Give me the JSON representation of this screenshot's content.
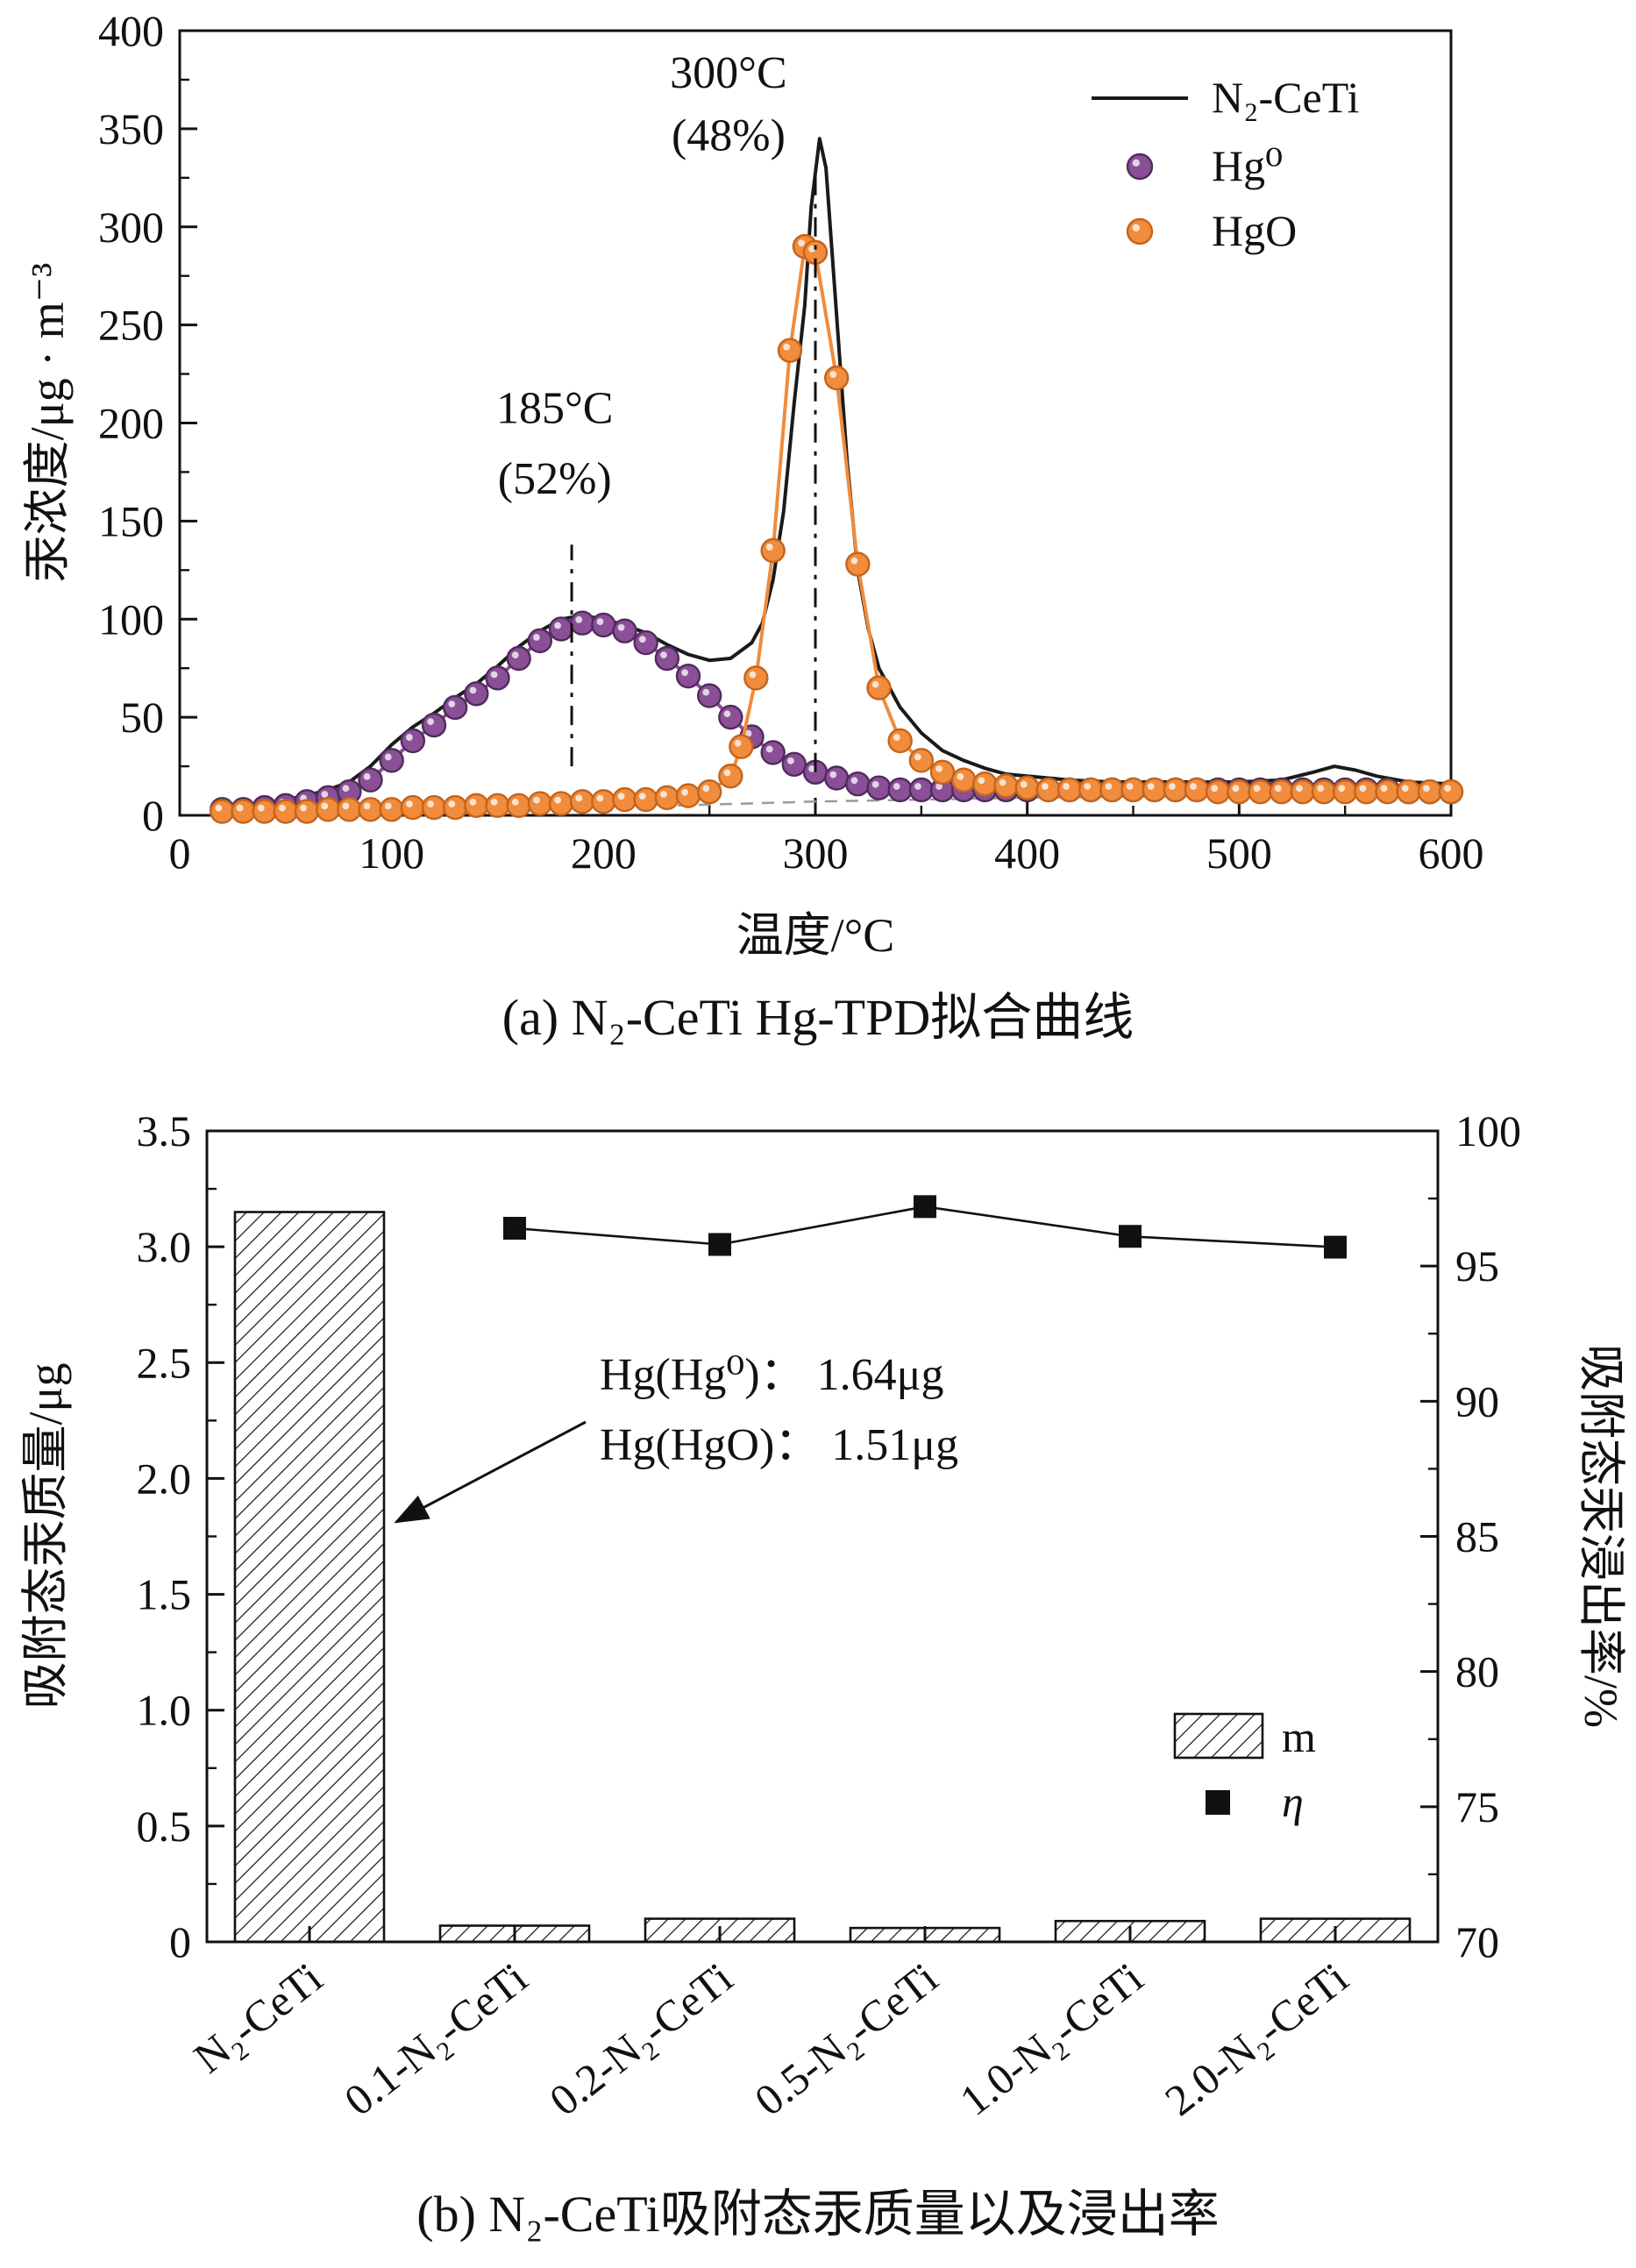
{
  "page": {
    "caption_a": "(a) N₂-CeTi Hg-TPD拟合曲线",
    "caption_b": "(b) N₂-CeTi吸附态汞质量以及浸出率"
  },
  "chart_data": [
    {
      "type": "line",
      "xlabel": "温度/°C",
      "ylabel": "汞浓度/μg · m⁻³",
      "xlim": [
        0,
        600
      ],
      "ylim": [
        0,
        400
      ],
      "xticks": [
        0,
        100,
        200,
        300,
        400,
        500,
        600
      ],
      "yticks": [
        0,
        50,
        100,
        150,
        200,
        250,
        300,
        350,
        400
      ],
      "x_minor": [
        50,
        150,
        250,
        350,
        450,
        550
      ],
      "y_minor": [
        25,
        75,
        125,
        175,
        225,
        275,
        325,
        375
      ],
      "legend": [
        {
          "label": "N₂-CeTi",
          "kind": "line",
          "color": "#1a1a1a"
        },
        {
          "label": "Hg⁰",
          "kind": "ball",
          "color": "#8a4f97",
          "edge": "#4f2c5c"
        },
        {
          "label": "HgO",
          "kind": "ball",
          "color": "#f08c3c",
          "edge": "#c4641d"
        }
      ],
      "series": [
        {
          "name": "baseline-fit",
          "type": "dashed-line",
          "color": "#9a9a9a",
          "x": [
            235,
            300,
            400,
            500,
            600
          ],
          "y": [
            5,
            7,
            9,
            10,
            11
          ]
        },
        {
          "name": "N₂-CeTi",
          "type": "line",
          "color": "#1a1a1a",
          "x": [
            20,
            30,
            40,
            50,
            60,
            70,
            80,
            90,
            100,
            110,
            120,
            130,
            140,
            150,
            160,
            170,
            180,
            190,
            200,
            210,
            220,
            230,
            240,
            250,
            260,
            270,
            275,
            280,
            285,
            290,
            295,
            298,
            302,
            305,
            310,
            315,
            320,
            325,
            330,
            340,
            350,
            360,
            370,
            380,
            390,
            400,
            420,
            440,
            460,
            480,
            500,
            520,
            535,
            545,
            555,
            565,
            580,
            600
          ],
          "y": [
            4,
            5,
            6,
            8,
            10,
            13,
            17,
            25,
            36,
            45,
            52,
            60,
            67,
            76,
            86,
            94,
            100,
            102,
            100,
            97,
            93,
            87,
            82,
            79,
            80,
            88,
            98,
            120,
            155,
            210,
            260,
            310,
            345,
            330,
            255,
            180,
            125,
            95,
            75,
            55,
            42,
            33,
            28,
            24,
            21,
            20,
            18,
            17,
            17,
            17,
            17,
            18,
            22,
            25,
            23,
            20,
            17,
            16
          ]
        },
        {
          "name": "Hg⁰",
          "type": "line-marker",
          "color": "#8a4f97",
          "edge": "#4f2c5c",
          "x": [
            20,
            30,
            40,
            50,
            60,
            70,
            80,
            90,
            100,
            110,
            120,
            130,
            140,
            150,
            160,
            170,
            180,
            190,
            200,
            210,
            220,
            230,
            240,
            250,
            260,
            270,
            280,
            290,
            300,
            310,
            320,
            330,
            340,
            350,
            360,
            370,
            380,
            390,
            400,
            410,
            420,
            430,
            440,
            450,
            460,
            470,
            480,
            490,
            500,
            510,
            520,
            530,
            540,
            550,
            560,
            570,
            580,
            590,
            600
          ],
          "y": [
            3,
            3,
            4,
            5,
            7,
            9,
            12,
            18,
            28,
            38,
            46,
            55,
            62,
            70,
            80,
            89,
            95,
            98,
            97,
            94,
            88,
            80,
            71,
            61,
            50,
            40,
            32,
            26,
            22,
            19,
            16,
            14,
            13,
            13,
            13,
            13,
            13,
            13,
            13,
            13,
            13,
            13,
            13,
            13,
            13,
            13,
            13,
            13,
            13,
            13,
            13,
            13,
            13,
            13,
            13,
            13,
            12,
            12,
            12
          ]
        },
        {
          "name": "HgO",
          "type": "line-marker",
          "color": "#f08c3c",
          "edge": "#c4641d",
          "x": [
            20,
            30,
            40,
            50,
            60,
            70,
            80,
            90,
            100,
            110,
            120,
            130,
            140,
            150,
            160,
            170,
            180,
            190,
            200,
            210,
            220,
            230,
            240,
            250,
            260,
            265,
            272,
            280,
            288,
            295,
            300,
            310,
            320,
            330,
            340,
            350,
            360,
            370,
            380,
            390,
            400,
            410,
            420,
            430,
            440,
            450,
            460,
            470,
            480,
            490,
            500,
            510,
            520,
            530,
            540,
            550,
            560,
            570,
            580,
            590,
            600
          ],
          "y": [
            2,
            2,
            2,
            2,
            2,
            3,
            3,
            3,
            3,
            4,
            4,
            4,
            5,
            5,
            5,
            6,
            6,
            7,
            7,
            8,
            8,
            9,
            10,
            12,
            20,
            35,
            70,
            135,
            237,
            290,
            287,
            223,
            128,
            65,
            38,
            28,
            22,
            18,
            16,
            15,
            14,
            13,
            13,
            13,
            13,
            13,
            13,
            13,
            13,
            12,
            12,
            12,
            12,
            12,
            12,
            12,
            12,
            12,
            12,
            12,
            12
          ]
        }
      ],
      "annotations": [
        {
          "lines": [
            "185°C",
            "(52%)"
          ],
          "tx": 177,
          "ty1": 200,
          "ty2": 164,
          "vx": 185,
          "vy1": 25,
          "vy2": 138
        },
        {
          "lines": [
            "300°C",
            "(48%)"
          ],
          "tx": 259,
          "ty1": 371,
          "ty2": 339,
          "vx": 300,
          "vy1": 22,
          "vy2": 330
        }
      ]
    },
    {
      "type": "bar",
      "categories": [
        "N₂-CeTi",
        "0.1-N₂-CeTi",
        "0.2-N₂-CeTi",
        "0.5-N₂-CeTi",
        "1.0-N₂-CeTi",
        "2.0-N₂-CeTi"
      ],
      "bar_values": [
        3.15,
        0.07,
        0.1,
        0.06,
        0.09,
        0.1
      ],
      "eta_values": [
        null,
        96.4,
        95.8,
        97.2,
        96.1,
        95.7
      ],
      "ylabel_left": "吸附态汞质量/μg",
      "ylabel_right": "吸附态汞浸出率/%",
      "ylim_left": [
        0,
        3.5
      ],
      "ylim_right": [
        70,
        100
      ],
      "yticks_left": [
        0,
        0.5,
        1,
        1.5,
        2,
        2.5,
        3,
        3.5
      ],
      "ytick_labels_left": [
        "0",
        "0.5",
        "1.0",
        "1.5",
        "2.0",
        "2.5",
        "3.0",
        "3.5"
      ],
      "y_minor_left": [
        0.25,
        0.75,
        1.25,
        1.75,
        2.25,
        2.75,
        3.25
      ],
      "yticks_right": [
        70,
        75,
        80,
        85,
        90,
        95,
        100
      ],
      "y_minor_right": [
        72.5,
        77.5,
        82.5,
        87.5,
        92.5,
        97.5
      ],
      "bar_color": "#ffffff",
      "hatch_color": "#111111",
      "eta_color": "#111111",
      "legend": [
        {
          "label": "m",
          "kind": "hatch"
        },
        {
          "label": "η",
          "kind": "square"
        }
      ],
      "annotation": {
        "lines": [
          "Hg(Hg⁰)： 1.64μg",
          "Hg(HgO)： 1.51μg"
        ]
      }
    }
  ]
}
